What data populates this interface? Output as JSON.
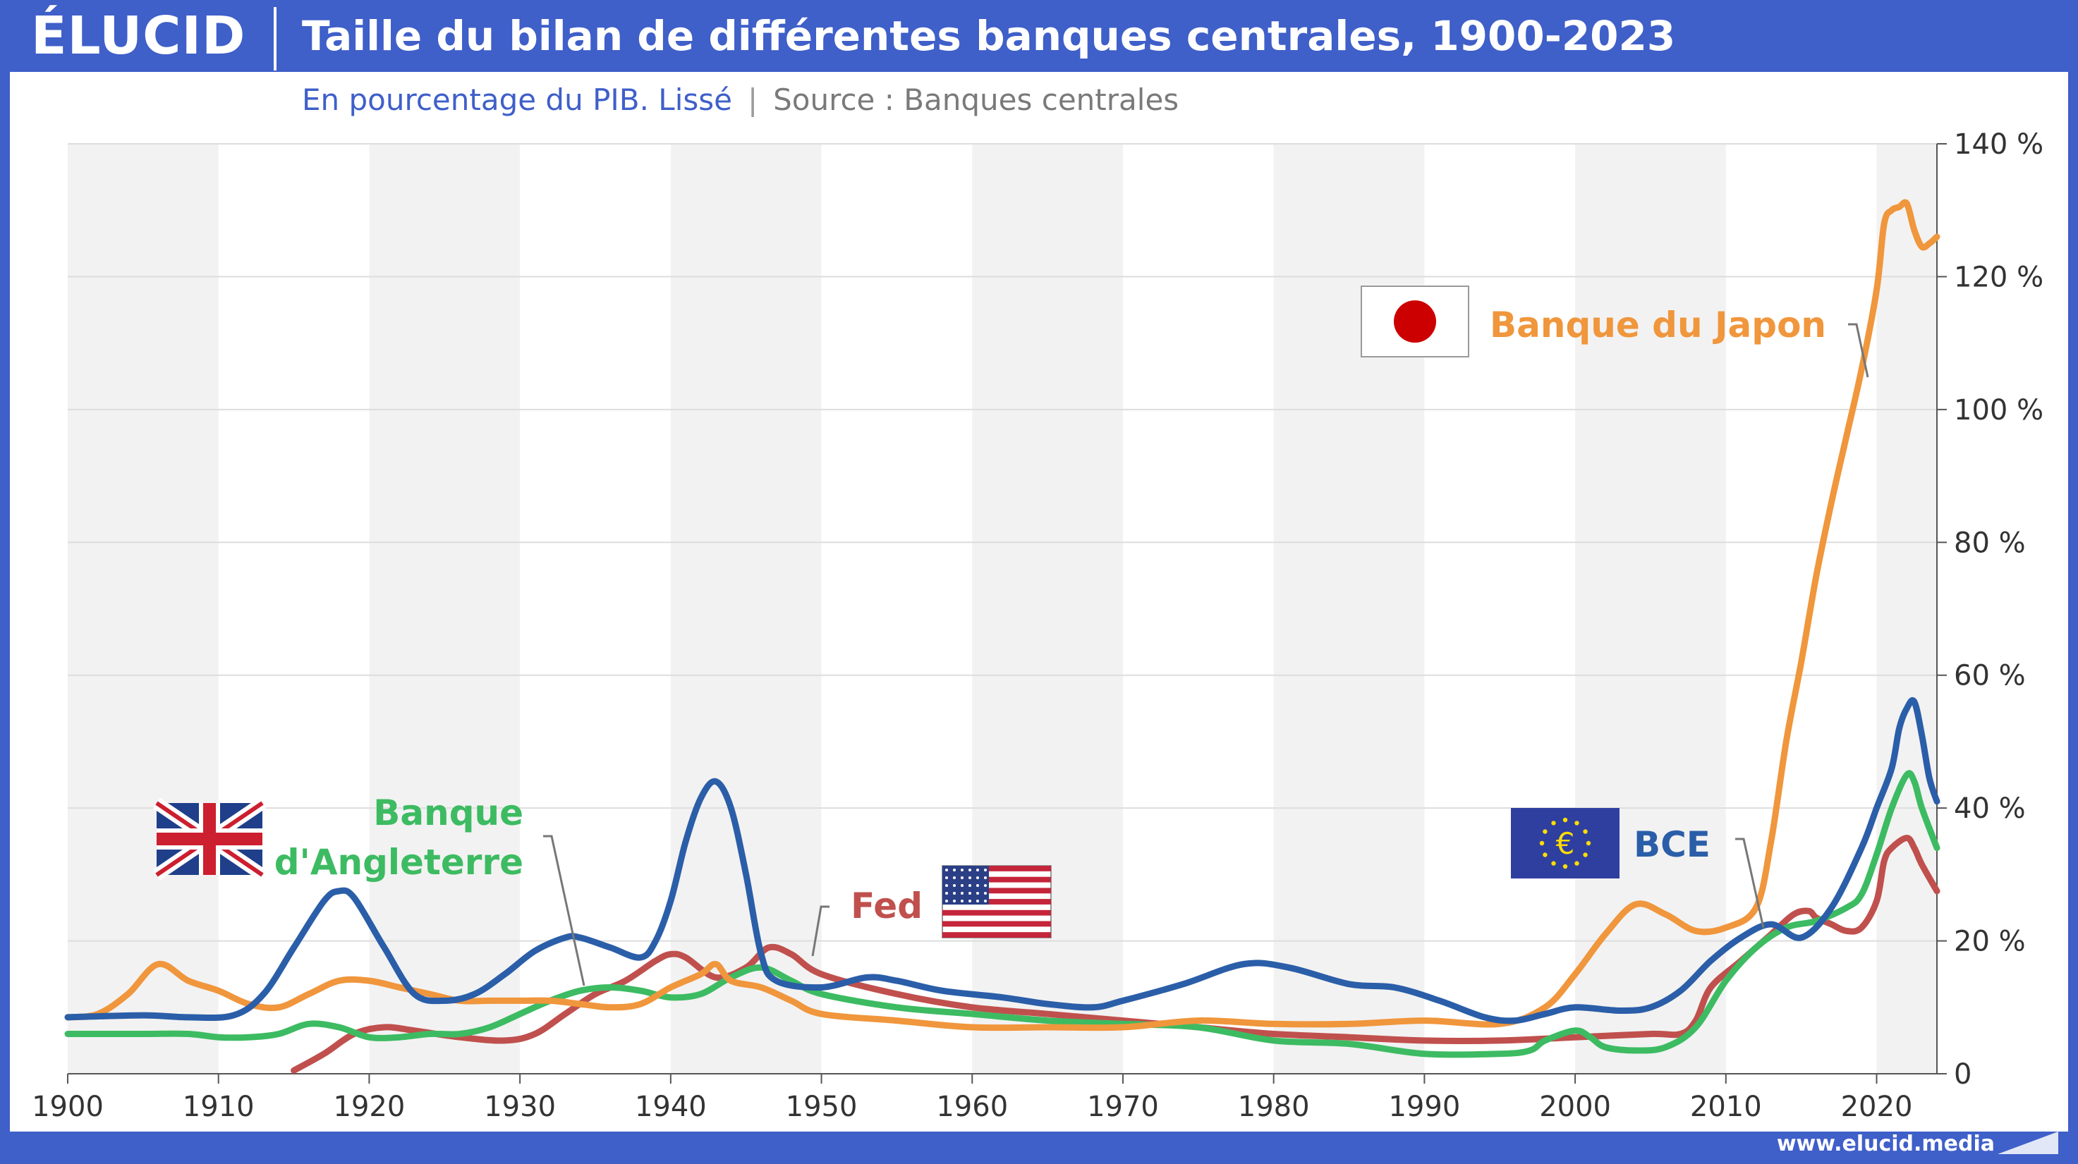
{
  "header": {
    "logo": "ÉLUCID",
    "title": "Taille du bilan de différentes banques centrales, 1900-2023",
    "subtitle": "En pourcentage du PIB. Lissé",
    "separator": "|",
    "source": "Source : Banques centrales"
  },
  "footer": {
    "url": "www.elucid.media"
  },
  "colors": {
    "brand": "#3f5fc9",
    "boj": "#f0963c",
    "fed": "#c0504d",
    "boe": "#3dbb62",
    "bce": "#2b5ea8"
  },
  "chart_data": {
    "type": "line",
    "xlim": [
      1900,
      2024
    ],
    "ylim": [
      0,
      140
    ],
    "x_ticks": [
      1900,
      1910,
      1920,
      1930,
      1940,
      1950,
      1960,
      1970,
      1980,
      1990,
      2000,
      2010,
      2020
    ],
    "y_tick_labels": [
      "0",
      "20 %",
      "40 %",
      "60 %",
      "80 %",
      "100 %",
      "120 %",
      "140 %"
    ],
    "y_ticks": [
      0,
      20,
      40,
      60,
      80,
      100,
      120,
      140
    ],
    "grid": true,
    "series": [
      {
        "key": "boj",
        "name": "Banque du Japon",
        "flag_icon": "japan-flag-icon",
        "points": [
          [
            1900,
            8.5
          ],
          [
            1902,
            9
          ],
          [
            1904,
            12
          ],
          [
            1906,
            16.5
          ],
          [
            1908,
            14
          ],
          [
            1910,
            12.5
          ],
          [
            1912,
            10.5
          ],
          [
            1914,
            10
          ],
          [
            1916,
            12
          ],
          [
            1918,
            14
          ],
          [
            1920,
            14
          ],
          [
            1922,
            13
          ],
          [
            1924,
            12
          ],
          [
            1926,
            11
          ],
          [
            1928,
            11
          ],
          [
            1930,
            11
          ],
          [
            1932,
            11
          ],
          [
            1934,
            10.5
          ],
          [
            1936,
            10
          ],
          [
            1938,
            10.5
          ],
          [
            1940,
            13
          ],
          [
            1942,
            15
          ],
          [
            1943,
            16.5
          ],
          [
            1944,
            14
          ],
          [
            1946,
            13
          ],
          [
            1948,
            11
          ],
          [
            1950,
            9
          ],
          [
            1955,
            8
          ],
          [
            1960,
            7
          ],
          [
            1965,
            7
          ],
          [
            1970,
            7
          ],
          [
            1975,
            8
          ],
          [
            1980,
            7.5
          ],
          [
            1985,
            7.5
          ],
          [
            1990,
            8
          ],
          [
            1995,
            7.5
          ],
          [
            1998,
            10
          ],
          [
            2000,
            15
          ],
          [
            2002,
            21
          ],
          [
            2004,
            25.5
          ],
          [
            2006,
            24
          ],
          [
            2008,
            21.5
          ],
          [
            2010,
            22
          ],
          [
            2012,
            25
          ],
          [
            2013,
            35
          ],
          [
            2014,
            50
          ],
          [
            2015,
            62
          ],
          [
            2016,
            75
          ],
          [
            2017,
            86
          ],
          [
            2018,
            96
          ],
          [
            2019,
            106
          ],
          [
            2020,
            118
          ],
          [
            2020.5,
            128
          ],
          [
            2021,
            130
          ],
          [
            2021.5,
            130.5
          ],
          [
            2022,
            131
          ],
          [
            2022.5,
            127
          ],
          [
            2023,
            124.5
          ],
          [
            2023.5,
            125
          ],
          [
            2024,
            126
          ]
        ]
      },
      {
        "key": "fed",
        "name": "Fed",
        "flag_icon": "usa-flag-icon",
        "points": [
          [
            1915,
            0.5
          ],
          [
            1917,
            3
          ],
          [
            1919,
            6
          ],
          [
            1921,
            7
          ],
          [
            1923,
            6.5
          ],
          [
            1926,
            5.5
          ],
          [
            1929,
            5
          ],
          [
            1931,
            6
          ],
          [
            1933,
            9
          ],
          [
            1935,
            12
          ],
          [
            1937,
            14
          ],
          [
            1939,
            17
          ],
          [
            1940,
            18
          ],
          [
            1941,
            17.5
          ],
          [
            1943,
            14.5
          ],
          [
            1945,
            16
          ],
          [
            1946.5,
            19
          ],
          [
            1948,
            18
          ],
          [
            1950,
            15
          ],
          [
            1955,
            12
          ],
          [
            1960,
            10
          ],
          [
            1965,
            9
          ],
          [
            1970,
            8
          ],
          [
            1975,
            7
          ],
          [
            1980,
            6
          ],
          [
            1985,
            5.5
          ],
          [
            1990,
            5
          ],
          [
            1995,
            5
          ],
          [
            2000,
            5.5
          ],
          [
            2005,
            6
          ],
          [
            2007,
            6
          ],
          [
            2008,
            8
          ],
          [
            2009,
            13
          ],
          [
            2011,
            17
          ],
          [
            2013,
            21
          ],
          [
            2014.5,
            24
          ],
          [
            2015.5,
            24.5
          ],
          [
            2016,
            23.5
          ],
          [
            2017,
            22.5
          ],
          [
            2018,
            21.5
          ],
          [
            2019,
            22
          ],
          [
            2020,
            26
          ],
          [
            2020.5,
            32
          ],
          [
            2021,
            34
          ],
          [
            2022,
            35.5
          ],
          [
            2022.5,
            34
          ],
          [
            2023,
            31.5
          ],
          [
            2024,
            27.5
          ]
        ]
      },
      {
        "key": "boe",
        "name": "Banque d'Angleterre",
        "flag_icon": "uk-flag-icon",
        "points": [
          [
            1900,
            6
          ],
          [
            1905,
            6
          ],
          [
            1908,
            6
          ],
          [
            1910,
            5.5
          ],
          [
            1912,
            5.5
          ],
          [
            1914,
            6
          ],
          [
            1916,
            7.5
          ],
          [
            1918,
            7
          ],
          [
            1920,
            5.5
          ],
          [
            1922,
            5.5
          ],
          [
            1924,
            6
          ],
          [
            1926,
            6
          ],
          [
            1928,
            7
          ],
          [
            1930,
            9
          ],
          [
            1932,
            11
          ],
          [
            1934,
            12.5
          ],
          [
            1936,
            13
          ],
          [
            1938,
            12.5
          ],
          [
            1940,
            11.5
          ],
          [
            1942,
            12
          ],
          [
            1944,
            14.5
          ],
          [
            1946,
            16
          ],
          [
            1948,
            14
          ],
          [
            1950,
            12
          ],
          [
            1955,
            10
          ],
          [
            1960,
            9
          ],
          [
            1965,
            8
          ],
          [
            1970,
            7.5
          ],
          [
            1975,
            7
          ],
          [
            1980,
            5
          ],
          [
            1985,
            4.5
          ],
          [
            1990,
            3
          ],
          [
            1995,
            3
          ],
          [
            1997,
            3.5
          ],
          [
            1998,
            5
          ],
          [
            2000,
            6.5
          ],
          [
            2001,
            5.5
          ],
          [
            2002,
            4
          ],
          [
            2004,
            3.5
          ],
          [
            2006,
            4
          ],
          [
            2008,
            7
          ],
          [
            2010,
            14
          ],
          [
            2012,
            19
          ],
          [
            2014,
            22
          ],
          [
            2016,
            23
          ],
          [
            2018,
            25
          ],
          [
            2019,
            27
          ],
          [
            2020,
            33
          ],
          [
            2021,
            40
          ],
          [
            2022,
            45
          ],
          [
            2022.5,
            44
          ],
          [
            2023,
            40
          ],
          [
            2024,
            34
          ]
        ]
      },
      {
        "key": "bce",
        "name": "BCE",
        "flag_icon": "eu-flag-icon",
        "points": [
          [
            1900,
            8.5
          ],
          [
            1905,
            8.8
          ],
          [
            1908,
            8.5
          ],
          [
            1911,
            8.8
          ],
          [
            1913,
            12
          ],
          [
            1915,
            19
          ],
          [
            1917,
            26
          ],
          [
            1918,
            27.5
          ],
          [
            1919,
            26.5
          ],
          [
            1921,
            19
          ],
          [
            1923,
            12
          ],
          [
            1925,
            11
          ],
          [
            1927,
            12
          ],
          [
            1929,
            15
          ],
          [
            1931,
            18.5
          ],
          [
            1933,
            20.5
          ],
          [
            1934,
            20.5
          ],
          [
            1936,
            19
          ],
          [
            1938,
            17.5
          ],
          [
            1939,
            20
          ],
          [
            1940,
            26
          ],
          [
            1941,
            35
          ],
          [
            1942,
            41.5
          ],
          [
            1943,
            44
          ],
          [
            1944,
            40
          ],
          [
            1945,
            30
          ],
          [
            1946,
            18
          ],
          [
            1947,
            14
          ],
          [
            1950,
            13
          ],
          [
            1953,
            14.5
          ],
          [
            1955,
            14
          ],
          [
            1958,
            12.5
          ],
          [
            1962,
            11.5
          ],
          [
            1965,
            10.5
          ],
          [
            1968,
            10
          ],
          [
            1970,
            11
          ],
          [
            1974,
            13.5
          ],
          [
            1978,
            16.5
          ],
          [
            1981,
            16
          ],
          [
            1985,
            13.5
          ],
          [
            1988,
            13
          ],
          [
            1991,
            11
          ],
          [
            1994,
            8.5
          ],
          [
            1996,
            8
          ],
          [
            1998,
            9
          ],
          [
            2000,
            10
          ],
          [
            2003,
            9.5
          ],
          [
            2005,
            10
          ],
          [
            2007,
            12.5
          ],
          [
            2009,
            17
          ],
          [
            2011,
            20.5
          ],
          [
            2013,
            22.5
          ],
          [
            2015,
            20.5
          ],
          [
            2017,
            25
          ],
          [
            2019,
            34
          ],
          [
            2020,
            40
          ],
          [
            2021,
            46
          ],
          [
            2021.5,
            52
          ],
          [
            2022,
            55
          ],
          [
            2022.5,
            56
          ],
          [
            2023,
            51
          ],
          [
            2023.5,
            44.5
          ],
          [
            2024,
            41
          ]
        ]
      }
    ],
    "labels": {
      "boj": "Banque du Japon",
      "fed": "Fed",
      "boe_line1": "Banque",
      "boe_line2": "d'Angleterre",
      "bce": "BCE"
    }
  }
}
